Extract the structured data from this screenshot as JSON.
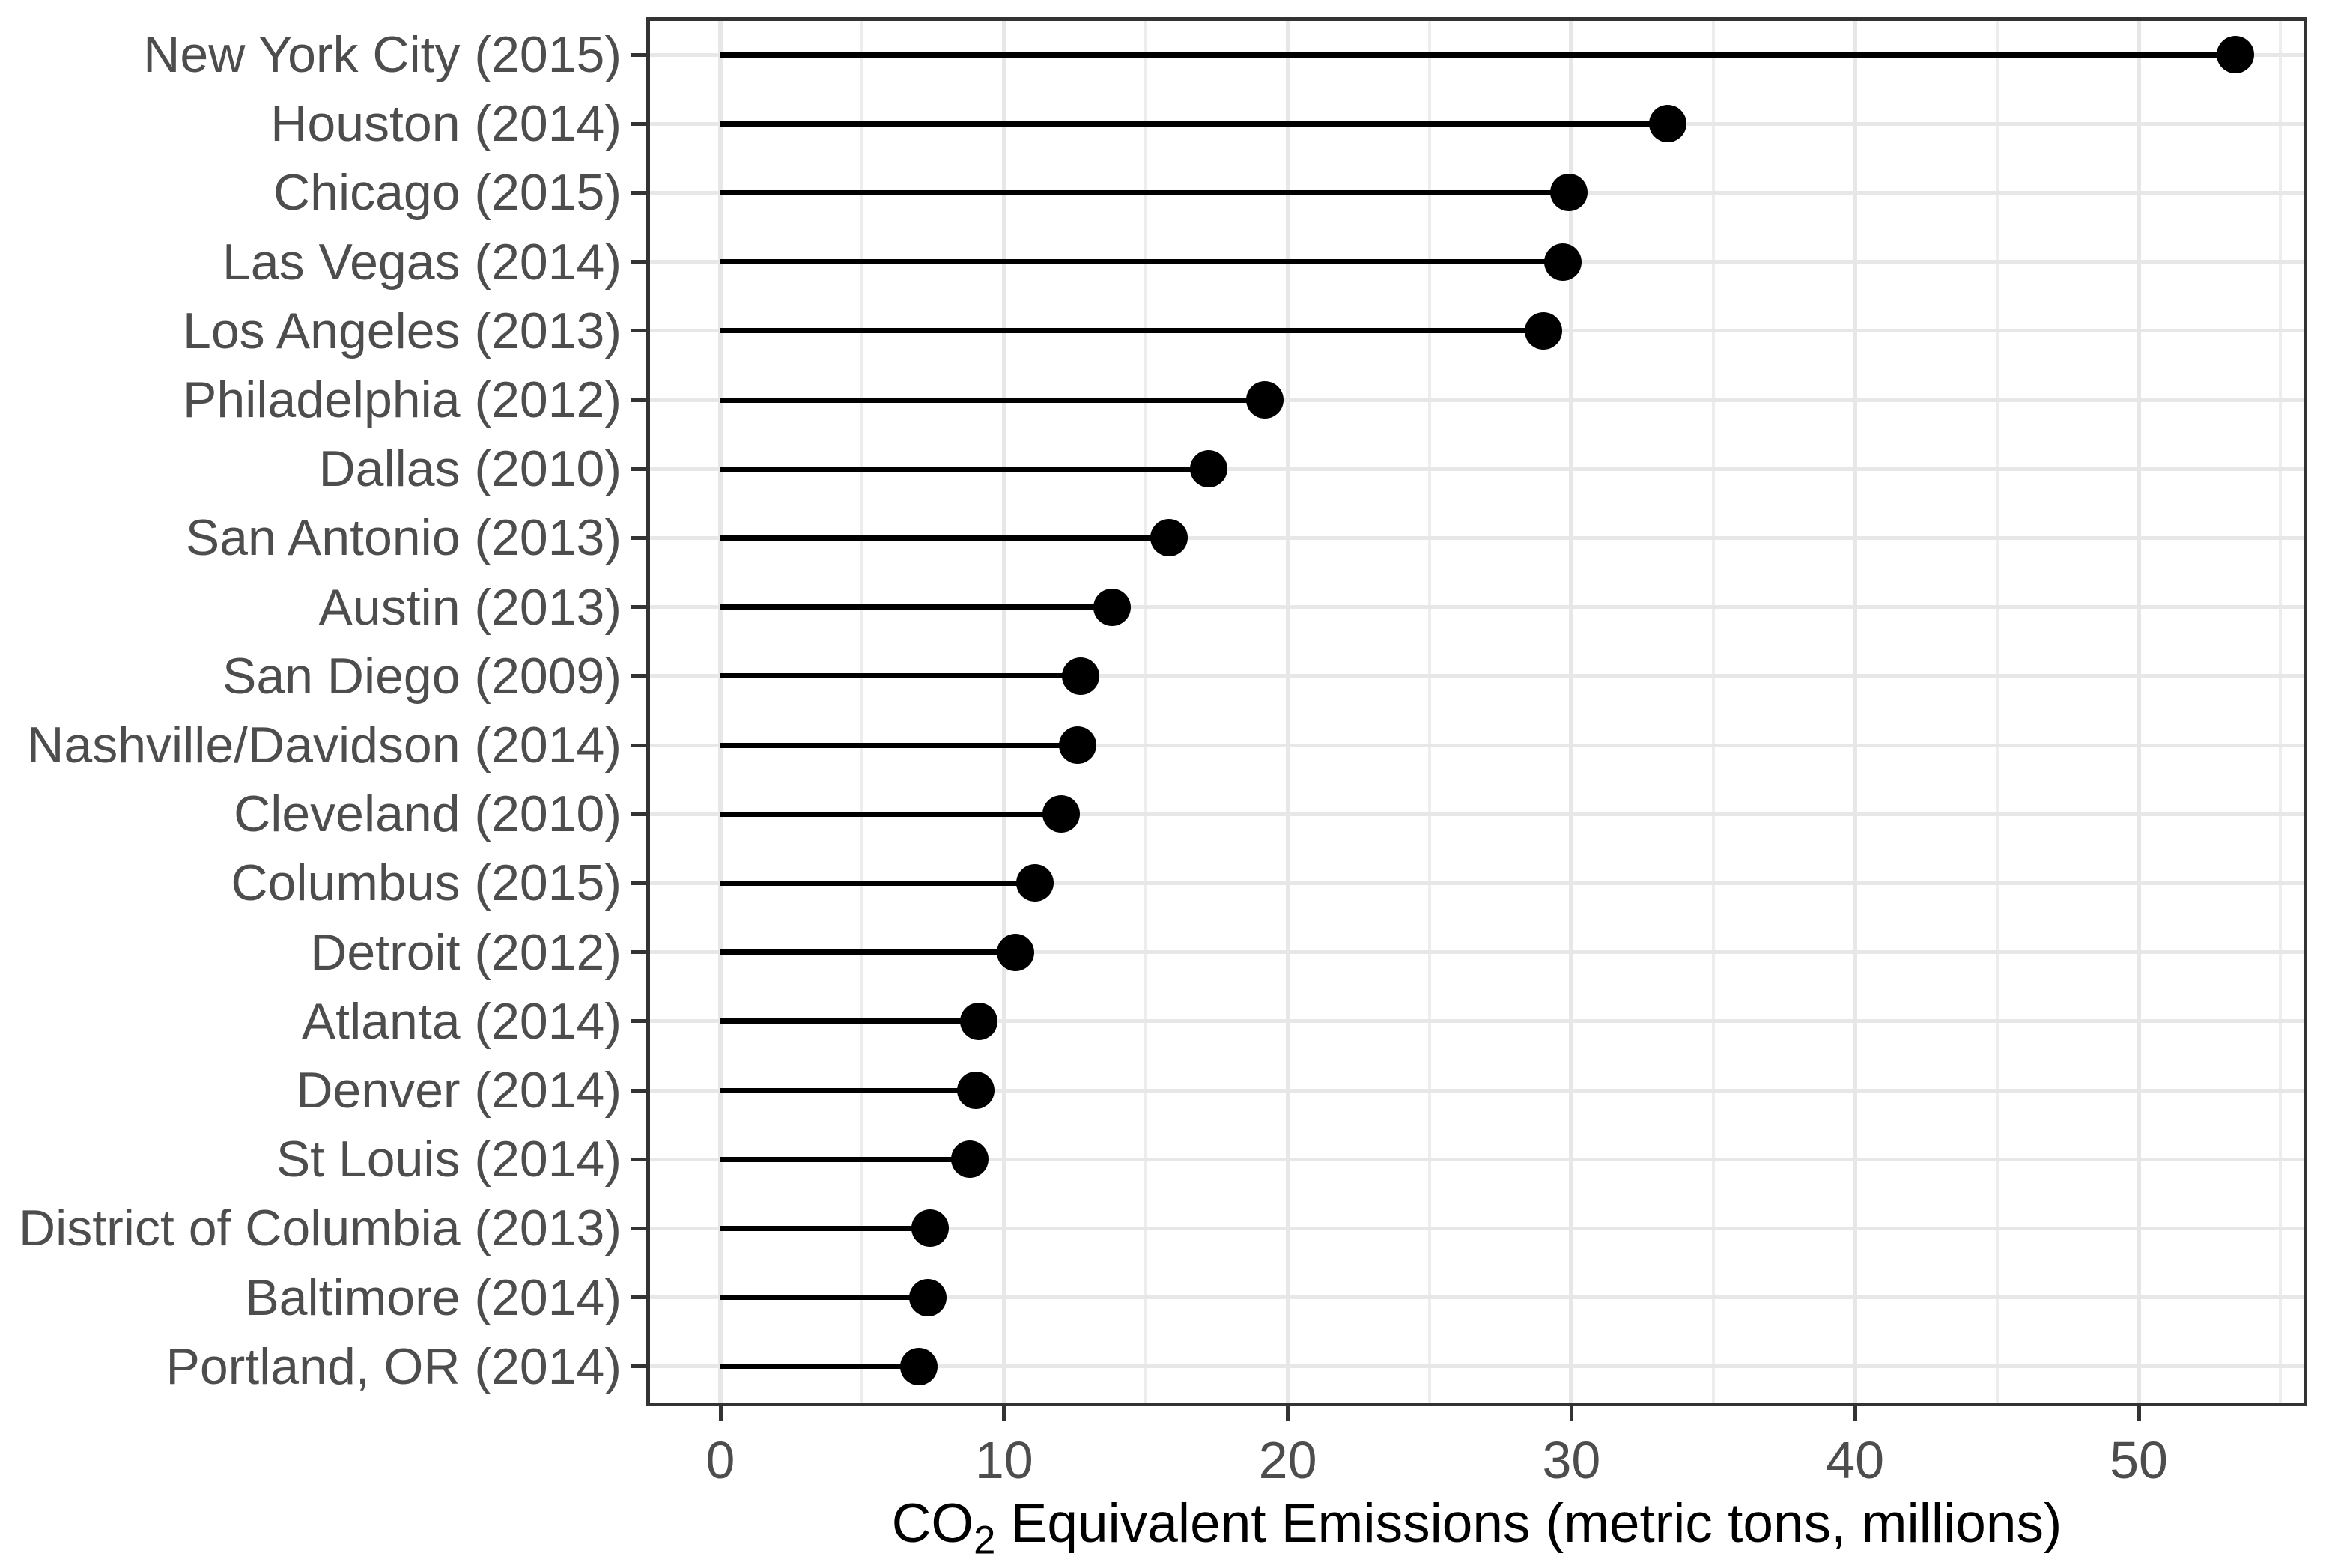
{
  "chart_data": {
    "type": "bar",
    "style": "lollipop",
    "orientation": "horizontal",
    "title": "",
    "xlabel": "CO2 Equivalent Emissions (metric tons, millions)",
    "ylabel": "",
    "categories": [
      "New York City (2015)",
      "Houston (2014)",
      "Chicago (2015)",
      "Las Vegas (2014)",
      "Los Angeles (2013)",
      "Philadelphia (2012)",
      "Dallas (2010)",
      "San Antonio (2013)",
      "Austin (2013)",
      "San Diego (2009)",
      "Nashville/Davidson (2014)",
      "Cleveland (2010)",
      "Columbus (2015)",
      "Detroit (2012)",
      "Atlanta (2014)",
      "Denver (2014)",
      "St Louis (2014)",
      "District of Columbia (2013)",
      "Baltimore (2014)",
      "Portland, OR (2014)"
    ],
    "values": [
      53.4,
      33.4,
      29.9,
      29.7,
      29.0,
      19.2,
      17.2,
      15.8,
      13.8,
      12.7,
      12.6,
      12.0,
      11.1,
      10.4,
      9.1,
      9.0,
      8.8,
      7.4,
      7.3,
      7.0
    ],
    "xlim": [
      -2.6,
      55.9
    ],
    "x_major_ticks": [
      0,
      10,
      20,
      30,
      40,
      50
    ],
    "x_tick_labels": [
      "0",
      "10",
      "20",
      "30",
      "40",
      "50"
    ],
    "x_minor_gridlines": [
      5,
      15,
      25,
      35,
      45,
      55
    ],
    "grid": "major and minor vertical gridlines, one horizontal gridline per category row",
    "legend_position": "none"
  },
  "axis_title": {
    "prefix": "CO",
    "subscript": "2",
    "suffix": " Equivalent Emissions (metric tons, millions)"
  },
  "colors": {
    "background": "#ffffff",
    "panel_border": "#333333",
    "grid_major": "#e7e7e7",
    "grid_minor": "#ededed",
    "stem": "#000000",
    "dot": "#000000",
    "tick_mark": "#333333",
    "tick_label": "#4d4d4d",
    "axis_title": "#000000"
  }
}
